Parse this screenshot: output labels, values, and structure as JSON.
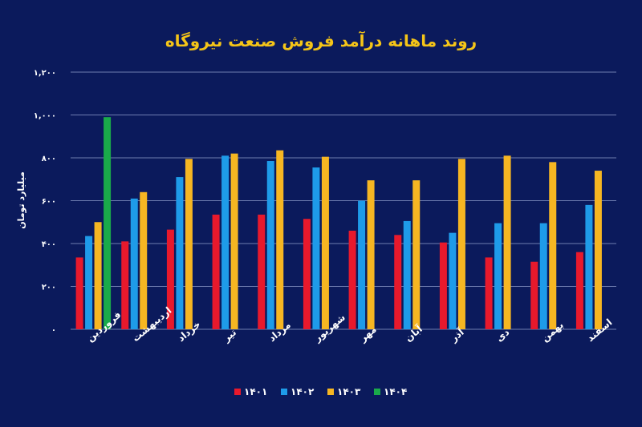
{
  "chart_data": {
    "type": "bar",
    "title": "روند ماهانه درآمد فروش صنعت نیروگاه",
    "ylabel": "میلیارد تومان",
    "xlabel": "",
    "ylim": [
      0,
      1200
    ],
    "y_ticks": [
      0,
      200,
      400,
      600,
      800,
      1000,
      1200
    ],
    "y_tick_labels": [
      "۰",
      "۲۰۰",
      "۴۰۰",
      "۶۰۰",
      "۸۰۰",
      "۱,۰۰۰",
      "۱,۲۰۰"
    ],
    "grid": true,
    "legend_position": "bottom",
    "categories": [
      "فروردین",
      "اردیبهشت",
      "خرداد",
      "تیر",
      "مرداد",
      "شهریور",
      "مهر",
      "آبان",
      "آذر",
      "دی",
      "بهمن",
      "اسفند"
    ],
    "series": [
      {
        "name": "۱۴۰۱",
        "color": "#e8192c",
        "values": [
          335,
          410,
          465,
          535,
          535,
          515,
          460,
          440,
          405,
          335,
          315,
          360
        ]
      },
      {
        "name": "۱۴۰۲",
        "color": "#1e9be9",
        "values": [
          435,
          610,
          710,
          810,
          785,
          755,
          600,
          505,
          450,
          495,
          495,
          580
        ]
      },
      {
        "name": "۱۴۰۳",
        "color": "#f6b622",
        "values": [
          500,
          640,
          795,
          820,
          835,
          805,
          695,
          695,
          795,
          810,
          780,
          740
        ]
      },
      {
        "name": "۱۴۰۴",
        "color": "#1aaa4a",
        "values": [
          990,
          null,
          null,
          null,
          null,
          null,
          null,
          null,
          null,
          null,
          null,
          null
        ]
      }
    ]
  }
}
